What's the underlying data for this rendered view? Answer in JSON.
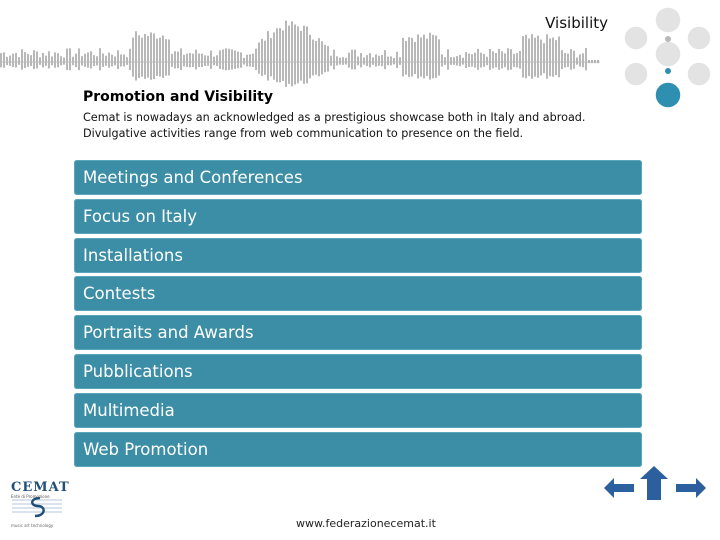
{
  "header": {
    "title": "Visibility"
  },
  "intro": {
    "heading": "Promotion and Visibility",
    "line1": "Cemat is nowadays an acknowledged as a prestigious showcase both in Italy and abroad.",
    "line2": "Divulgative activities range from web communication to presence on the field."
  },
  "menu": {
    "items": [
      {
        "label": "Meetings and Conferences"
      },
      {
        "label": "Focus on Italy"
      },
      {
        "label": "Installations"
      },
      {
        "label": "Contests"
      },
      {
        "label": "Portraits and Awards"
      },
      {
        "label": "Pubblications"
      },
      {
        "label": "Multimedia"
      },
      {
        "label": "Web Promotion"
      }
    ]
  },
  "logo": {
    "name": "CEMAT",
    "subtitle": "Ente di Promozione",
    "tagline": "music art technology"
  },
  "footer": {
    "url": "www.federazionecemat.it"
  },
  "colors": {
    "menu_bg": "#3b8ea5",
    "accent_circle": "#2f8fb0",
    "circle_grey": "#e3e3e3",
    "nav_arrow": "#2c5f9e"
  },
  "icons": {
    "back": "arrow-left-icon",
    "up": "arrow-up-icon",
    "forward": "arrow-right-icon"
  }
}
